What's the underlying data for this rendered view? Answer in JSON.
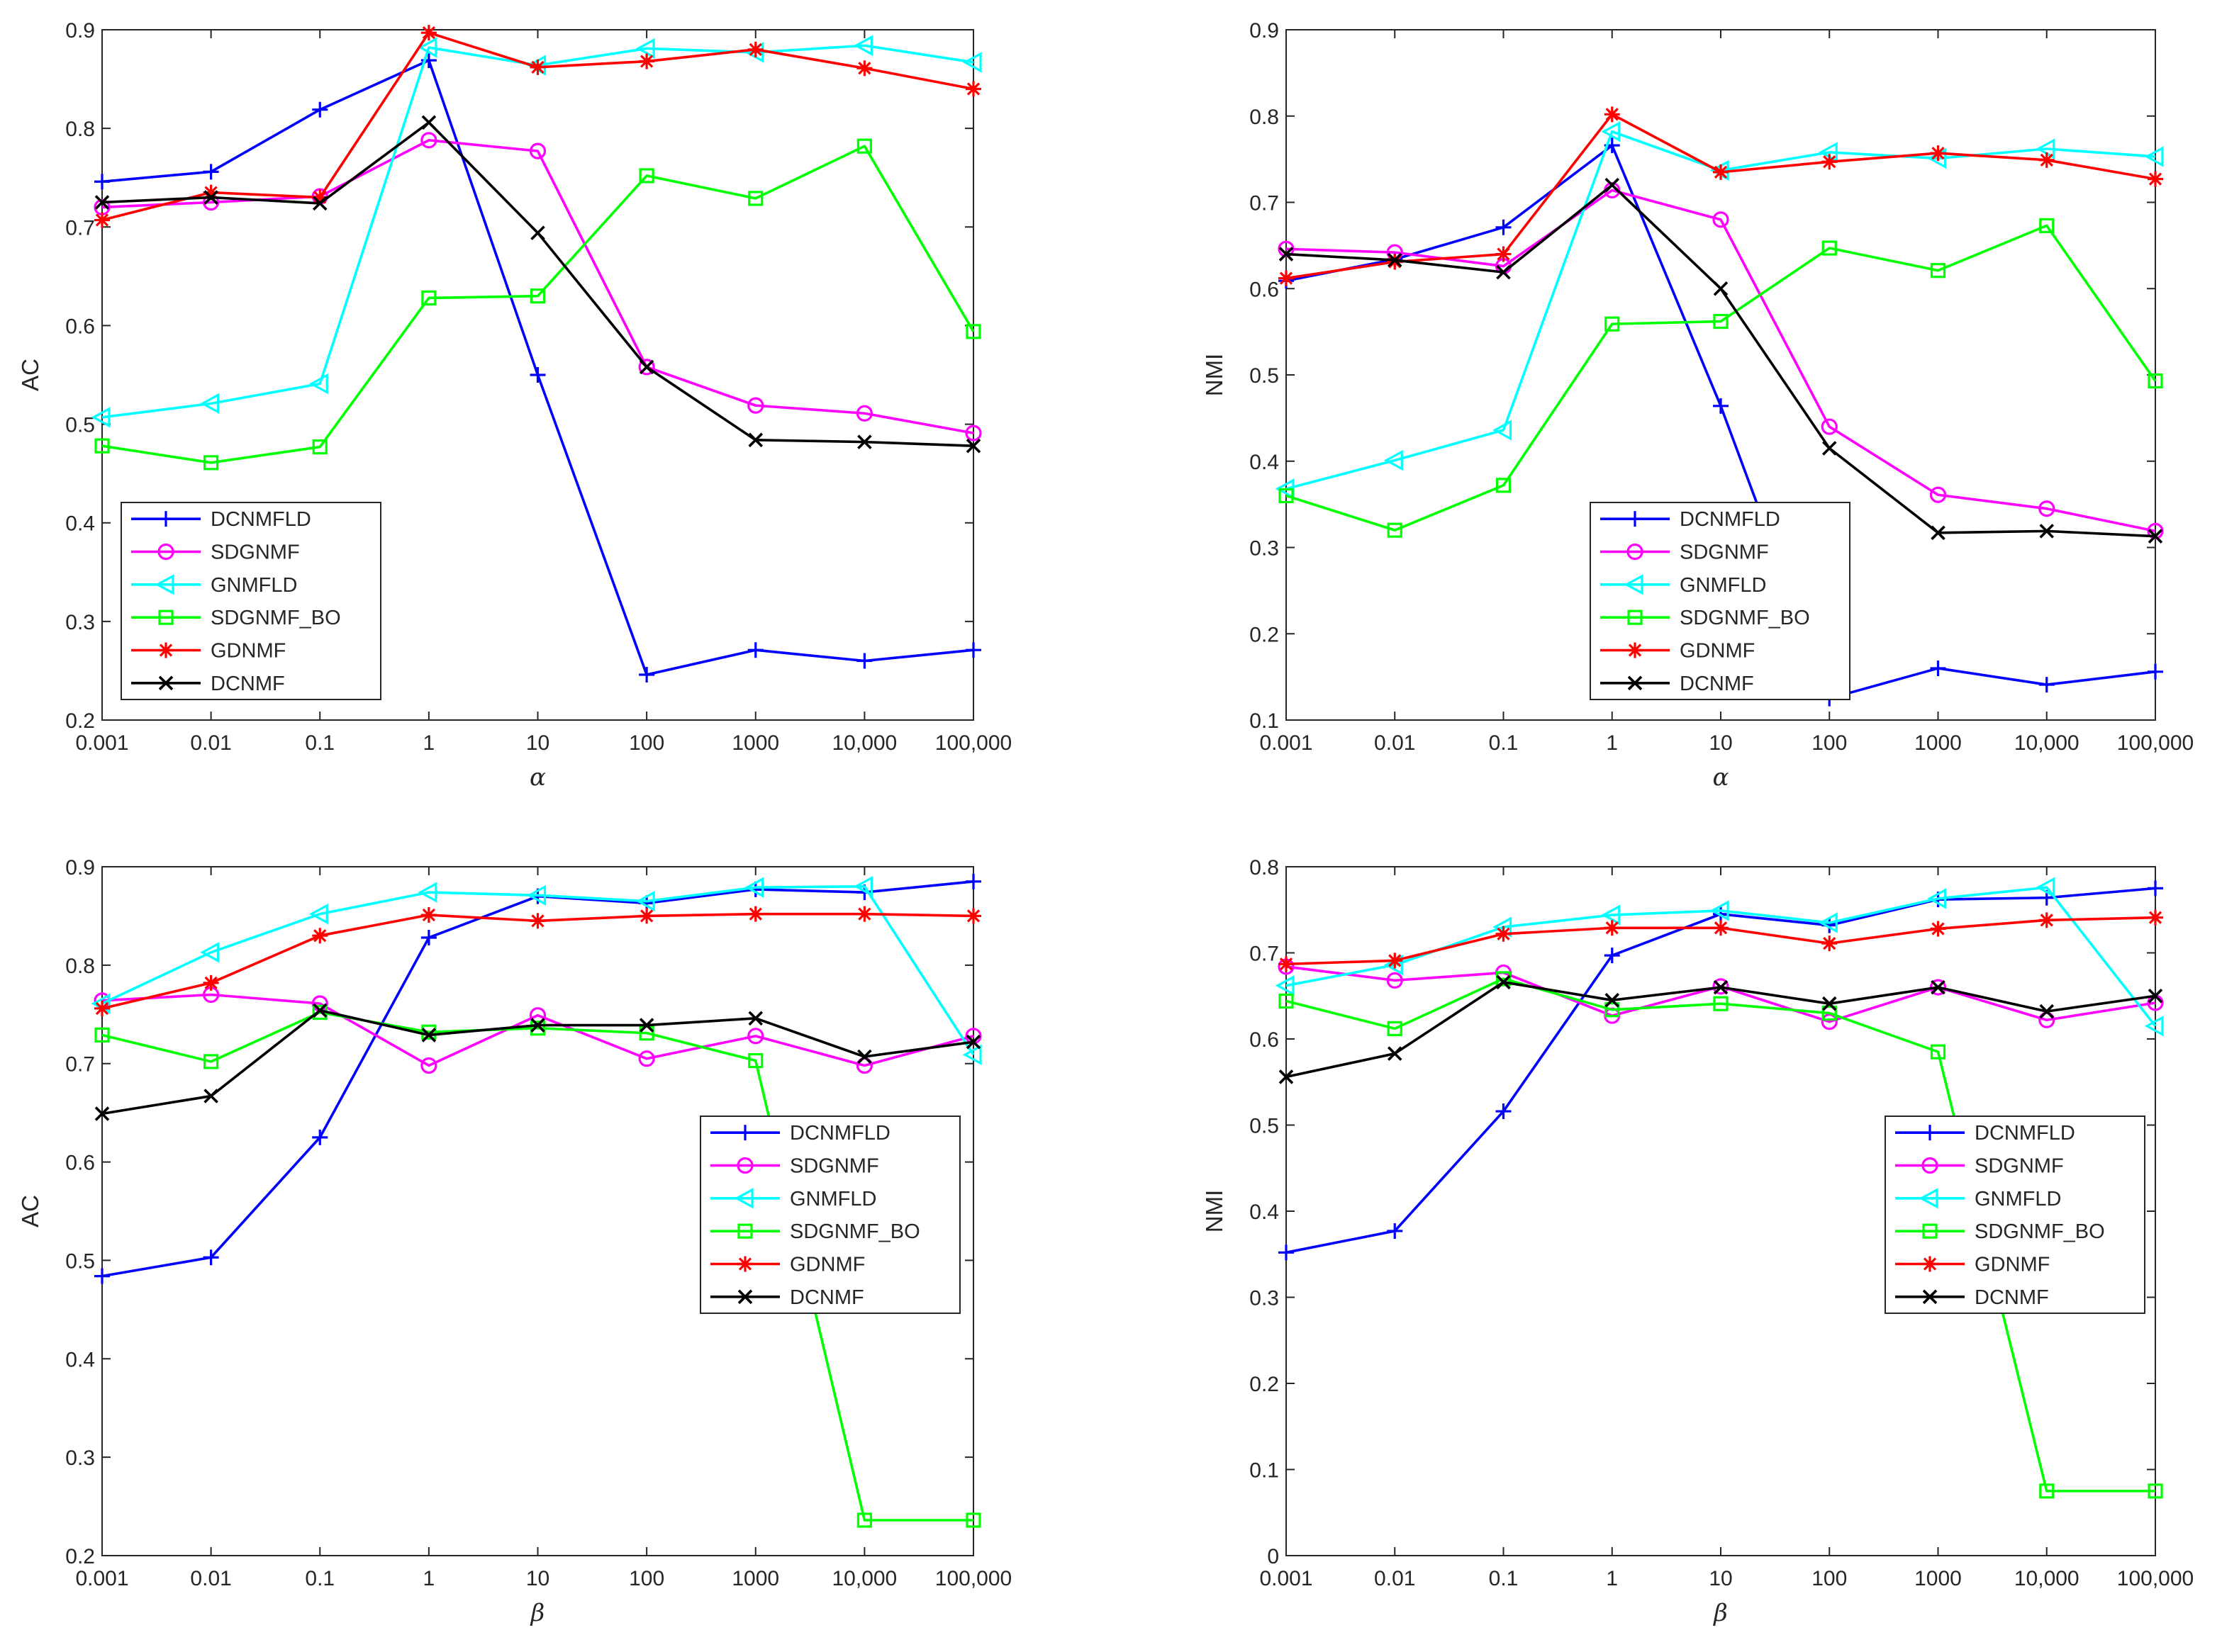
{
  "chart_data": [
    {
      "type": "line",
      "xlabel": "α",
      "ylabel": "AC",
      "categories": [
        "0.001",
        "0.01",
        "0.1",
        "1",
        "10",
        "100",
        "1000",
        "10,000",
        "100,000"
      ],
      "ylim": [
        0.2,
        0.9
      ],
      "yticks": [
        "0.2",
        "0.3",
        "0.4",
        "0.5",
        "0.6",
        "0.7",
        "0.8",
        "0.9"
      ],
      "legend_position": "bottom-left",
      "series": [
        {
          "name": "DCNMFLD",
          "color": "#0000ff",
          "marker": "plus",
          "values": [
            0.746,
            0.756,
            0.819,
            0.869,
            0.55,
            0.246,
            0.271,
            0.26,
            0.271
          ]
        },
        {
          "name": "SDGNMF",
          "color": "#ff00ff",
          "marker": "circle",
          "values": [
            0.72,
            0.725,
            0.731,
            0.788,
            0.777,
            0.558,
            0.519,
            0.511,
            0.491
          ]
        },
        {
          "name": "GNMFLD",
          "color": "#00ffff",
          "marker": "triangle-left",
          "values": [
            0.507,
            0.521,
            0.541,
            0.882,
            0.864,
            0.881,
            0.877,
            0.884,
            0.867
          ]
        },
        {
          "name": "SDGNMF_BO",
          "color": "#00ff00",
          "marker": "square",
          "values": [
            0.478,
            0.461,
            0.477,
            0.628,
            0.63,
            0.752,
            0.729,
            0.782,
            0.594
          ]
        },
        {
          "name": "GDNMF",
          "color": "#ff0000",
          "marker": "asterisk",
          "values": [
            0.707,
            0.735,
            0.73,
            0.897,
            0.862,
            0.868,
            0.88,
            0.861,
            0.84
          ]
        },
        {
          "name": "DCNMF",
          "color": "#000000",
          "marker": "x",
          "values": [
            0.725,
            0.73,
            0.724,
            0.806,
            0.694,
            0.558,
            0.484,
            0.482,
            0.478
          ]
        }
      ]
    },
    {
      "type": "line",
      "xlabel": "α",
      "ylabel": "NMI",
      "categories": [
        "0.001",
        "0.01",
        "0.1",
        "1",
        "10",
        "100",
        "1000",
        "10,000",
        "100,000"
      ],
      "ylim": [
        0.1,
        0.9
      ],
      "yticks": [
        "0.1",
        "0.2",
        "0.3",
        "0.4",
        "0.5",
        "0.6",
        "0.7",
        "0.8",
        "0.9"
      ],
      "legend_position": "bottom-left",
      "series": [
        {
          "name": "DCNMFLD",
          "color": "#0000ff",
          "marker": "plus",
          "values": [
            0.609,
            0.634,
            0.671,
            0.766,
            0.464,
            0.125,
            0.16,
            0.141,
            0.156
          ]
        },
        {
          "name": "SDGNMF",
          "color": "#ff00ff",
          "marker": "circle",
          "values": [
            0.646,
            0.642,
            0.626,
            0.714,
            0.68,
            0.44,
            0.361,
            0.345,
            0.319
          ]
        },
        {
          "name": "GNMFLD",
          "color": "#00ffff",
          "marker": "triangle-left",
          "values": [
            0.368,
            0.401,
            0.436,
            0.782,
            0.737,
            0.758,
            0.751,
            0.762,
            0.753
          ]
        },
        {
          "name": "SDGNMF_BO",
          "color": "#00ff00",
          "marker": "square",
          "values": [
            0.36,
            0.32,
            0.372,
            0.559,
            0.562,
            0.647,
            0.621,
            0.673,
            0.493
          ]
        },
        {
          "name": "GDNMF",
          "color": "#ff0000",
          "marker": "asterisk",
          "values": [
            0.612,
            0.631,
            0.64,
            0.802,
            0.735,
            0.747,
            0.757,
            0.749,
            0.727
          ]
        },
        {
          "name": "DCNMF",
          "color": "#000000",
          "marker": "x",
          "values": [
            0.64,
            0.633,
            0.619,
            0.72,
            0.6,
            0.415,
            0.317,
            0.319,
            0.313
          ]
        }
      ]
    },
    {
      "type": "line",
      "xlabel": "β",
      "ylabel": "AC",
      "categories": [
        "0.001",
        "0.01",
        "0.1",
        "1",
        "10",
        "100",
        "1000",
        "10,000",
        "100,000"
      ],
      "ylim": [
        0.2,
        0.9
      ],
      "yticks": [
        "0.2",
        "0.3",
        "0.4",
        "0.5",
        "0.6",
        "0.7",
        "0.8",
        "0.9"
      ],
      "legend_position": "bottom-right",
      "series": [
        {
          "name": "DCNMFLD",
          "color": "#0000ff",
          "marker": "plus",
          "values": [
            0.484,
            0.503,
            0.625,
            0.828,
            0.87,
            0.863,
            0.877,
            0.874,
            0.885
          ]
        },
        {
          "name": "SDGNMF",
          "color": "#ff00ff",
          "marker": "circle",
          "values": [
            0.764,
            0.77,
            0.761,
            0.698,
            0.749,
            0.705,
            0.728,
            0.698,
            0.728
          ]
        },
        {
          "name": "GNMFLD",
          "color": "#00ffff",
          "marker": "triangle-left",
          "values": [
            0.761,
            0.813,
            0.852,
            0.874,
            0.871,
            0.865,
            0.879,
            0.88,
            0.709
          ]
        },
        {
          "name": "SDGNMF_BO",
          "color": "#00ff00",
          "marker": "square",
          "values": [
            0.729,
            0.702,
            0.752,
            0.732,
            0.736,
            0.731,
            0.703,
            0.236,
            0.236
          ]
        },
        {
          "name": "GDNMF",
          "color": "#ff0000",
          "marker": "asterisk",
          "values": [
            0.756,
            0.782,
            0.83,
            0.851,
            0.845,
            0.85,
            0.852,
            0.852,
            0.85
          ]
        },
        {
          "name": "DCNMF",
          "color": "#000000",
          "marker": "x",
          "values": [
            0.649,
            0.667,
            0.754,
            0.729,
            0.739,
            0.739,
            0.746,
            0.707,
            0.722
          ]
        }
      ]
    },
    {
      "type": "line",
      "xlabel": "β",
      "ylabel": "NMI",
      "categories": [
        "0.001",
        "0.01",
        "0.1",
        "1",
        "10",
        "100",
        "1000",
        "10,000",
        "100,000"
      ],
      "ylim": [
        0,
        0.8
      ],
      "yticks": [
        "0",
        "0.1",
        "0.2",
        "0.3",
        "0.4",
        "0.5",
        "0.6",
        "0.7",
        "0.8"
      ],
      "legend_position": "bottom-right",
      "series": [
        {
          "name": "DCNMFLD",
          "color": "#0000ff",
          "marker": "plus",
          "values": [
            0.352,
            0.377,
            0.516,
            0.697,
            0.745,
            0.732,
            0.762,
            0.764,
            0.775
          ]
        },
        {
          "name": "SDGNMF",
          "color": "#ff00ff",
          "marker": "circle",
          "values": [
            0.684,
            0.668,
            0.677,
            0.627,
            0.661,
            0.62,
            0.66,
            0.622,
            0.642
          ]
        },
        {
          "name": "GNMFLD",
          "color": "#00ffff",
          "marker": "triangle-left",
          "values": [
            0.662,
            0.686,
            0.73,
            0.744,
            0.749,
            0.735,
            0.763,
            0.776,
            0.615
          ]
        },
        {
          "name": "SDGNMF_BO",
          "color": "#00ff00",
          "marker": "square",
          "values": [
            0.644,
            0.612,
            0.67,
            0.634,
            0.641,
            0.63,
            0.585,
            0.075,
            0.075
          ]
        },
        {
          "name": "GDNMF",
          "color": "#ff0000",
          "marker": "asterisk",
          "values": [
            0.687,
            0.691,
            0.722,
            0.729,
            0.729,
            0.711,
            0.728,
            0.738,
            0.741
          ]
        },
        {
          "name": "DCNMF",
          "color": "#000000",
          "marker": "x",
          "values": [
            0.556,
            0.583,
            0.666,
            0.645,
            0.66,
            0.641,
            0.66,
            0.632,
            0.65
          ]
        }
      ]
    }
  ]
}
